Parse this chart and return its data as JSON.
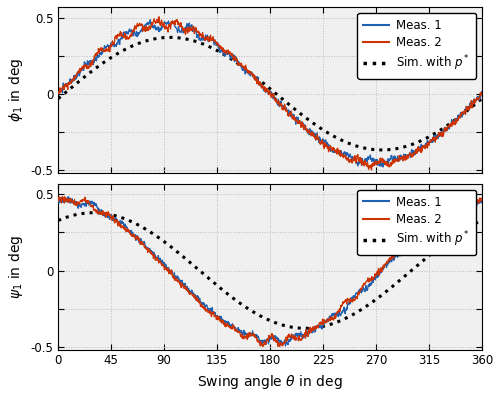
{
  "subplot1_ylabel": "$\\phi_1$ in deg",
  "subplot2_ylabel": "$\\psi_1$ in deg",
  "xlabel": "Swing angle $\\theta$ in deg",
  "xlim": [
    0,
    360
  ],
  "ylim": [
    -0.55,
    0.55
  ],
  "ylim_display": [
    -0.5,
    0.5
  ],
  "xticks": [
    0,
    45,
    90,
    135,
    180,
    225,
    270,
    315,
    360
  ],
  "yticks": [
    -0.5,
    -0.25,
    0,
    0.25,
    0.5
  ],
  "color_meas1": "#2060b0",
  "color_meas2": "#cc3300",
  "color_sim": "#000000",
  "legend_labels": [
    "Meas. 1",
    "Meas. 2",
    "Sim. with $p^*$"
  ],
  "background_color": "#f0f0f0",
  "grid_color": "#bbbbbb"
}
